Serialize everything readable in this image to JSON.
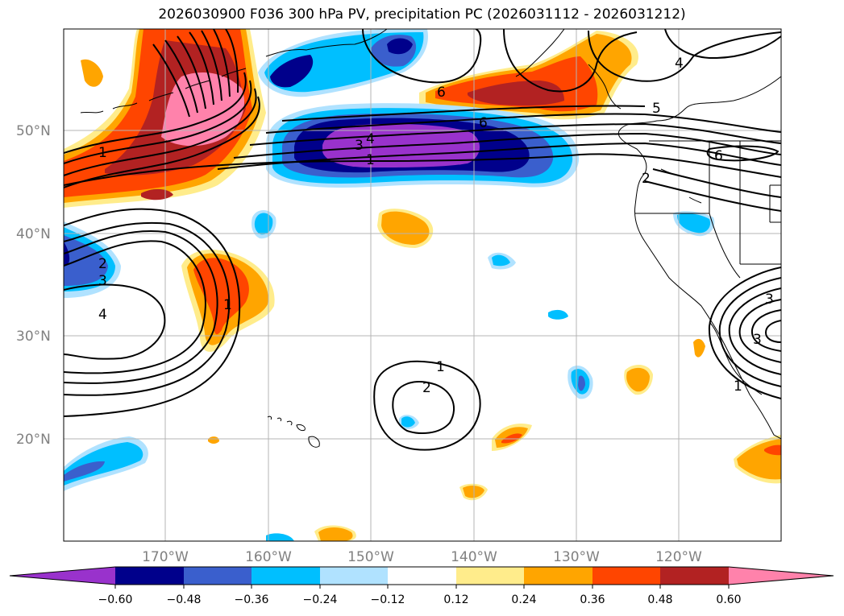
{
  "title": "2026030900 F036 300 hPa PV, precipitation PC (2026031112 - 2026031212)",
  "map": {
    "lat_ticks": [
      "50°N",
      "40°N",
      "30°N",
      "20°N"
    ],
    "lon_ticks": [
      "170°W",
      "160°W",
      "150°W",
      "140°W",
      "130°W",
      "120°W"
    ],
    "contour_labels": [
      "1",
      "3",
      "4",
      "1",
      "6",
      "6",
      "5",
      "4",
      "6",
      "2",
      "2",
      "3",
      "4",
      "1",
      "1",
      "2",
      "3",
      "1",
      "3"
    ]
  },
  "colorbar": {
    "colors": [
      "#9932cc",
      "#00008b",
      "#3a5fcd",
      "#00bfff",
      "#b0e2ff",
      "#ffffff",
      "#ffec8b",
      "#ffa500",
      "#ff4500",
      "#b22222",
      "#ff82ab"
    ],
    "labels": [
      "−0.60",
      "−0.48",
      "−0.36",
      "−0.24",
      "−0.12",
      "0.12",
      "0.24",
      "0.36",
      "0.48",
      "0.60"
    ]
  }
}
